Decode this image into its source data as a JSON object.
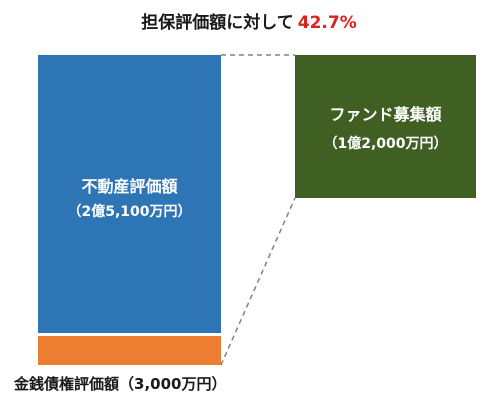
{
  "title": {
    "text": "担保評価額に対して",
    "percentage": "42.7%",
    "percentage_color": "#e02020"
  },
  "property": {
    "label": "不動産評価額",
    "amount": "（2億5,100万円）",
    "color": "#2e75b6"
  },
  "claim": {
    "label": "金銭債権評価額（3,000万円）",
    "color": "#ed7d31"
  },
  "fund": {
    "label": "ファンド募集額",
    "amount": "（1億2,000万円）",
    "color": "#3f5f23"
  }
}
